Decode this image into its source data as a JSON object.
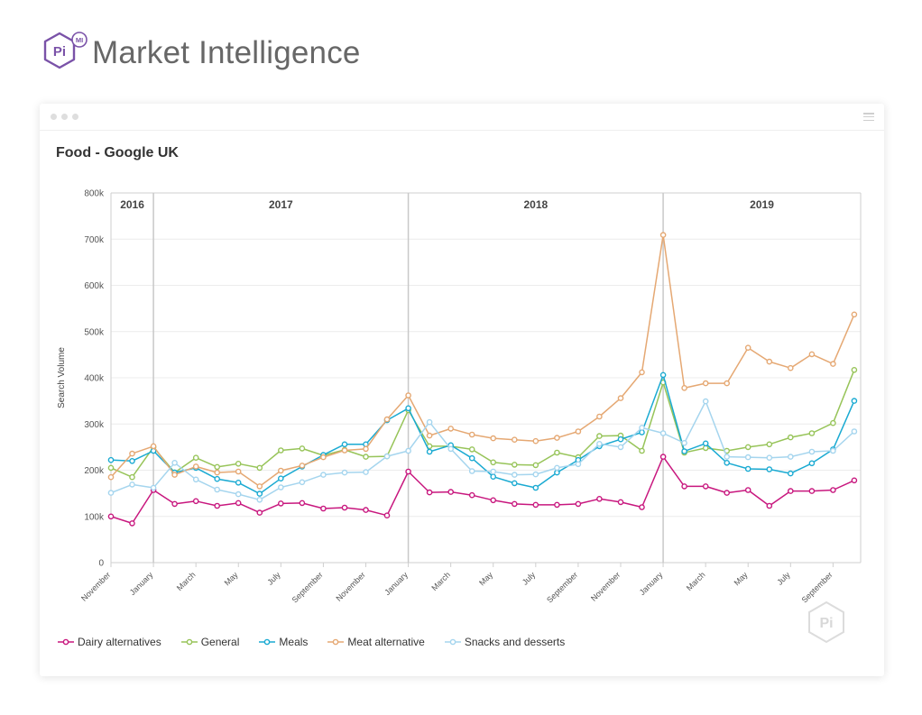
{
  "brand": {
    "name": "Market Intelligence",
    "logo_text": "Pi",
    "logo_badge": "MI",
    "logo_icon": "pi-hexagon-logo"
  },
  "window": {
    "menu_icon": "hamburger-icon"
  },
  "watermark": {
    "text": "Pi",
    "icon": "pi-hexagon-watermark"
  },
  "colors": {
    "brand": "#7a52a8",
    "dairy": "#c8177e",
    "general": "#97c459",
    "meals": "#1aaad2",
    "meat": "#e5a873",
    "snacks": "#a5d5ee"
  },
  "chart_data": {
    "type": "line",
    "title": "Food - Google UK",
    "ylabel": "Search Volume",
    "xlabel": "",
    "ylim": [
      0,
      800000
    ],
    "yticks": [
      "0",
      "100k",
      "200k",
      "300k",
      "400k",
      "500k",
      "600k",
      "700k",
      "800k"
    ],
    "grid": true,
    "legend_position": "bottom-left",
    "x": [
      "Nov 2016",
      "Dec 2016",
      "Jan 2017",
      "Feb 2017",
      "Mar 2017",
      "Apr 2017",
      "May 2017",
      "Jun 2017",
      "Jul 2017",
      "Aug 2017",
      "Sep 2017",
      "Oct 2017",
      "Nov 2017",
      "Dec 2017",
      "Jan 2018",
      "Feb 2018",
      "Mar 2018",
      "Apr 2018",
      "May 2018",
      "Jun 2018",
      "Jul 2018",
      "Aug 2018",
      "Sep 2018",
      "Oct 2018",
      "Nov 2018",
      "Dec 2018",
      "Jan 2019",
      "Feb 2019",
      "Mar 2019",
      "Apr 2019",
      "May 2019",
      "Jun 2019",
      "Jul 2019",
      "Aug 2019",
      "Sep 2019",
      "Oct 2019"
    ],
    "xtick_labels": [
      "November",
      "January",
      "March",
      "May",
      "July",
      "September",
      "November",
      "January",
      "March",
      "May",
      "July",
      "September",
      "November",
      "January",
      "March",
      "May",
      "July",
      "September"
    ],
    "year_bands": [
      "2016",
      "2017",
      "2018",
      "2019"
    ],
    "series": [
      {
        "name": "Dairy alternatives",
        "color_key": "dairy",
        "values": [
          100000,
          85000,
          157000,
          127000,
          133000,
          123000,
          129000,
          108000,
          128000,
          129000,
          117000,
          119000,
          114000,
          102000,
          197000,
          152000,
          153000,
          146000,
          135000,
          127000,
          125000,
          125000,
          127000,
          138000,
          131000,
          120000,
          229000,
          165000,
          165000,
          151000,
          157000,
          123000,
          155000,
          155000,
          157000,
          178000
        ]
      },
      {
        "name": "General",
        "color_key": "general",
        "values": [
          205000,
          185000,
          250000,
          195000,
          227000,
          207000,
          214000,
          205000,
          243000,
          247000,
          232000,
          244000,
          229000,
          230000,
          330000,
          252000,
          252000,
          245000,
          217000,
          212000,
          211000,
          238000,
          228000,
          274000,
          275000,
          242000,
          390000,
          238000,
          248000,
          242000,
          250000,
          256000,
          271000,
          280000,
          302000,
          417000
        ]
      },
      {
        "name": "Meals",
        "color_key": "meals",
        "values": [
          222000,
          220000,
          242000,
          195000,
          205000,
          181000,
          173000,
          149000,
          182000,
          208000,
          233000,
          256000,
          256000,
          308000,
          334000,
          240000,
          254000,
          226000,
          186000,
          172000,
          162000,
          195000,
          222000,
          252000,
          267000,
          282000,
          406000,
          241000,
          258000,
          216000,
          203000,
          202000,
          193000,
          215000,
          245000,
          350000
        ]
      },
      {
        "name": "Meat alternative",
        "color_key": "meat",
        "values": [
          185000,
          236000,
          252000,
          190000,
          208000,
          195000,
          197000,
          165000,
          199000,
          210000,
          228000,
          243000,
          246000,
          310000,
          362000,
          275000,
          290000,
          277000,
          269000,
          266000,
          263000,
          270000,
          284000,
          316000,
          356000,
          412000,
          709000,
          378000,
          388000,
          388000,
          465000,
          435000,
          421000,
          451000,
          430000,
          537000
        ]
      },
      {
        "name": "Snacks and desserts",
        "color_key": "snacks",
        "values": [
          151000,
          169000,
          162000,
          216000,
          180000,
          158000,
          148000,
          136000,
          163000,
          174000,
          190000,
          195000,
          196000,
          230000,
          242000,
          304000,
          246000,
          198000,
          197000,
          190000,
          191000,
          205000,
          213000,
          257000,
          250000,
          292000,
          280000,
          259000,
          349000,
          229000,
          228000,
          227000,
          229000,
          240000,
          242000,
          284000
        ]
      }
    ]
  }
}
